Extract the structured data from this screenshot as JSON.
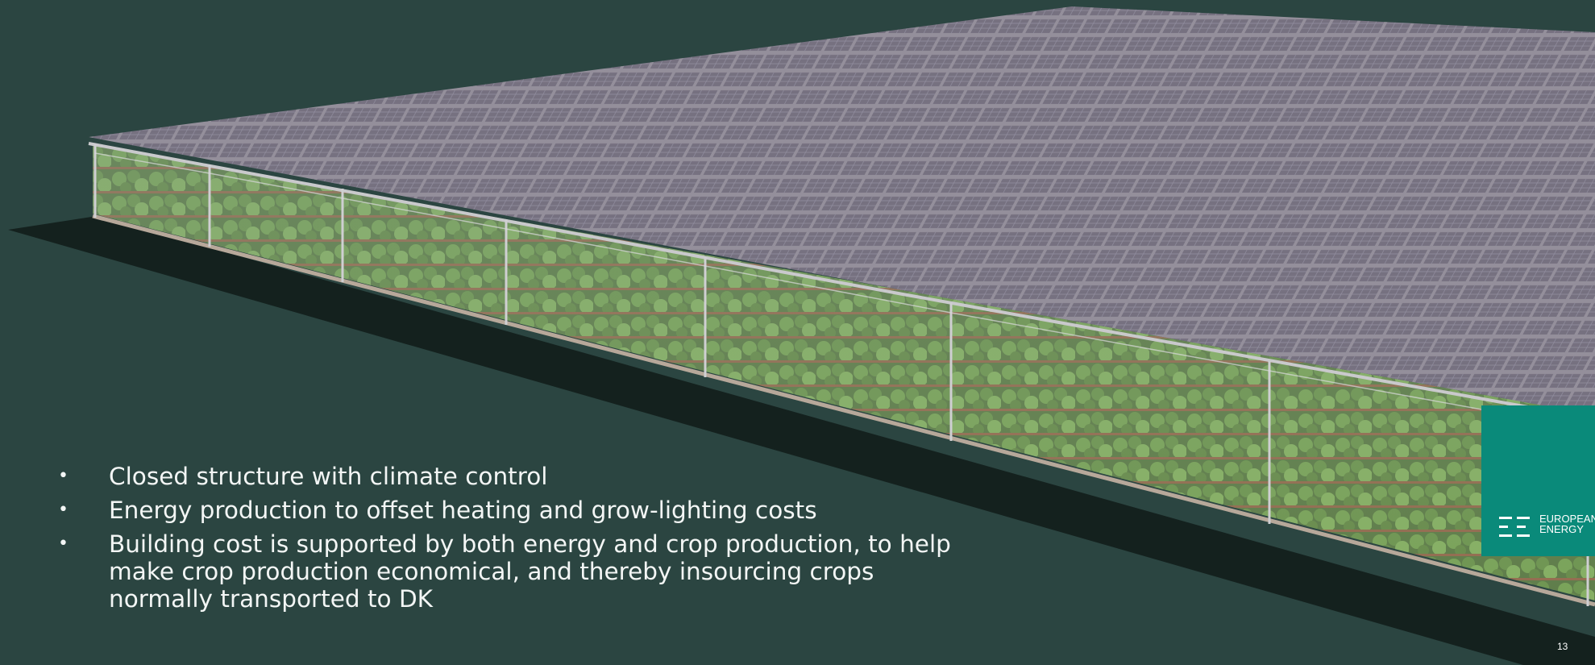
{
  "slide": {
    "bullets": [
      "Closed structure with climate control",
      "Energy production to offset heating and grow-lighting costs",
      "Building cost is supported by both energy and crop production, to help make crop production economical, and thereby insourcing crops normally transported to DK"
    ],
    "bullet_marker": "•",
    "page_number": "13"
  },
  "logo": {
    "line1": "EUROPEAN",
    "line2": "ENERGY",
    "color": "#0a8a7a"
  },
  "colors": {
    "background": "#2b4541",
    "text": "#f3f6f5"
  }
}
